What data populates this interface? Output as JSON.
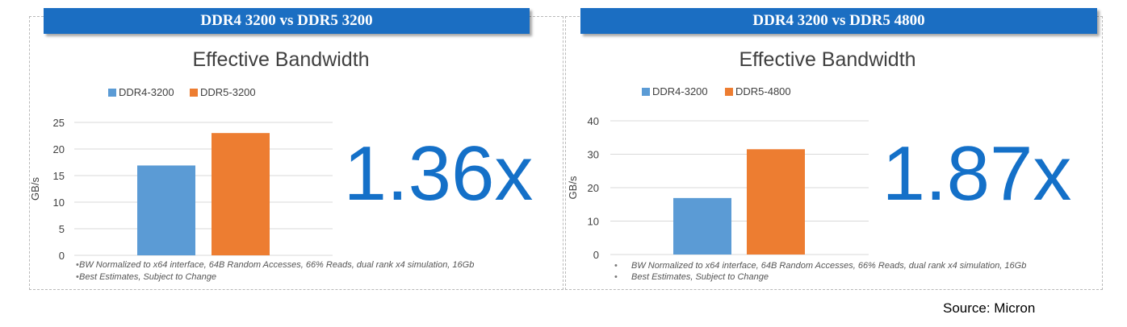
{
  "source": "Source: Micron",
  "panels": [
    {
      "banner": "DDR4 3200 vs DDR5 3200",
      "ratio": "1.36x",
      "notes": [
        "BW Normalized to x64 interface, 64B Random Accesses, 66% Reads, dual rank x4 simulation, 16Gb",
        "Best Estimates, Subject to Change"
      ],
      "colors": {
        "ddr4": "#5b9bd5",
        "ddr5": "#ed7d31"
      }
    },
    {
      "banner": "DDR4 3200 vs DDR5 4800",
      "ratio": "1.87x",
      "notes": [
        "BW Normalized to x64 interface, 64B Random Accesses, 66% Reads, dual rank x4 simulation, 16Gb",
        "Best Estimates, Subject to Change"
      ],
      "colors": {
        "ddr4": "#5b9bd5",
        "ddr5": "#ed7d31"
      }
    }
  ],
  "chart_data": [
    {
      "type": "bar",
      "title": "Effective Bandwidth",
      "ylabel": "GB/s",
      "xlabel": "",
      "ylim": [
        0,
        25
      ],
      "yticks": [
        0,
        5,
        10,
        15,
        20,
        25
      ],
      "grid": true,
      "legend": "top",
      "series": [
        {
          "name": "DDR4-3200",
          "values": [
            16.9
          ]
        },
        {
          "name": "DDR5-3200",
          "values": [
            23.0
          ]
        }
      ]
    },
    {
      "type": "bar",
      "title": "Effective Bandwidth",
      "ylabel": "GB/s",
      "xlabel": "",
      "ylim": [
        0,
        40
      ],
      "yticks": [
        0,
        10,
        20,
        30,
        40
      ],
      "grid": true,
      "legend": "top",
      "series": [
        {
          "name": "DDR4-3200",
          "values": [
            16.9
          ]
        },
        {
          "name": "DDR5-4800",
          "values": [
            31.5
          ]
        }
      ]
    }
  ]
}
